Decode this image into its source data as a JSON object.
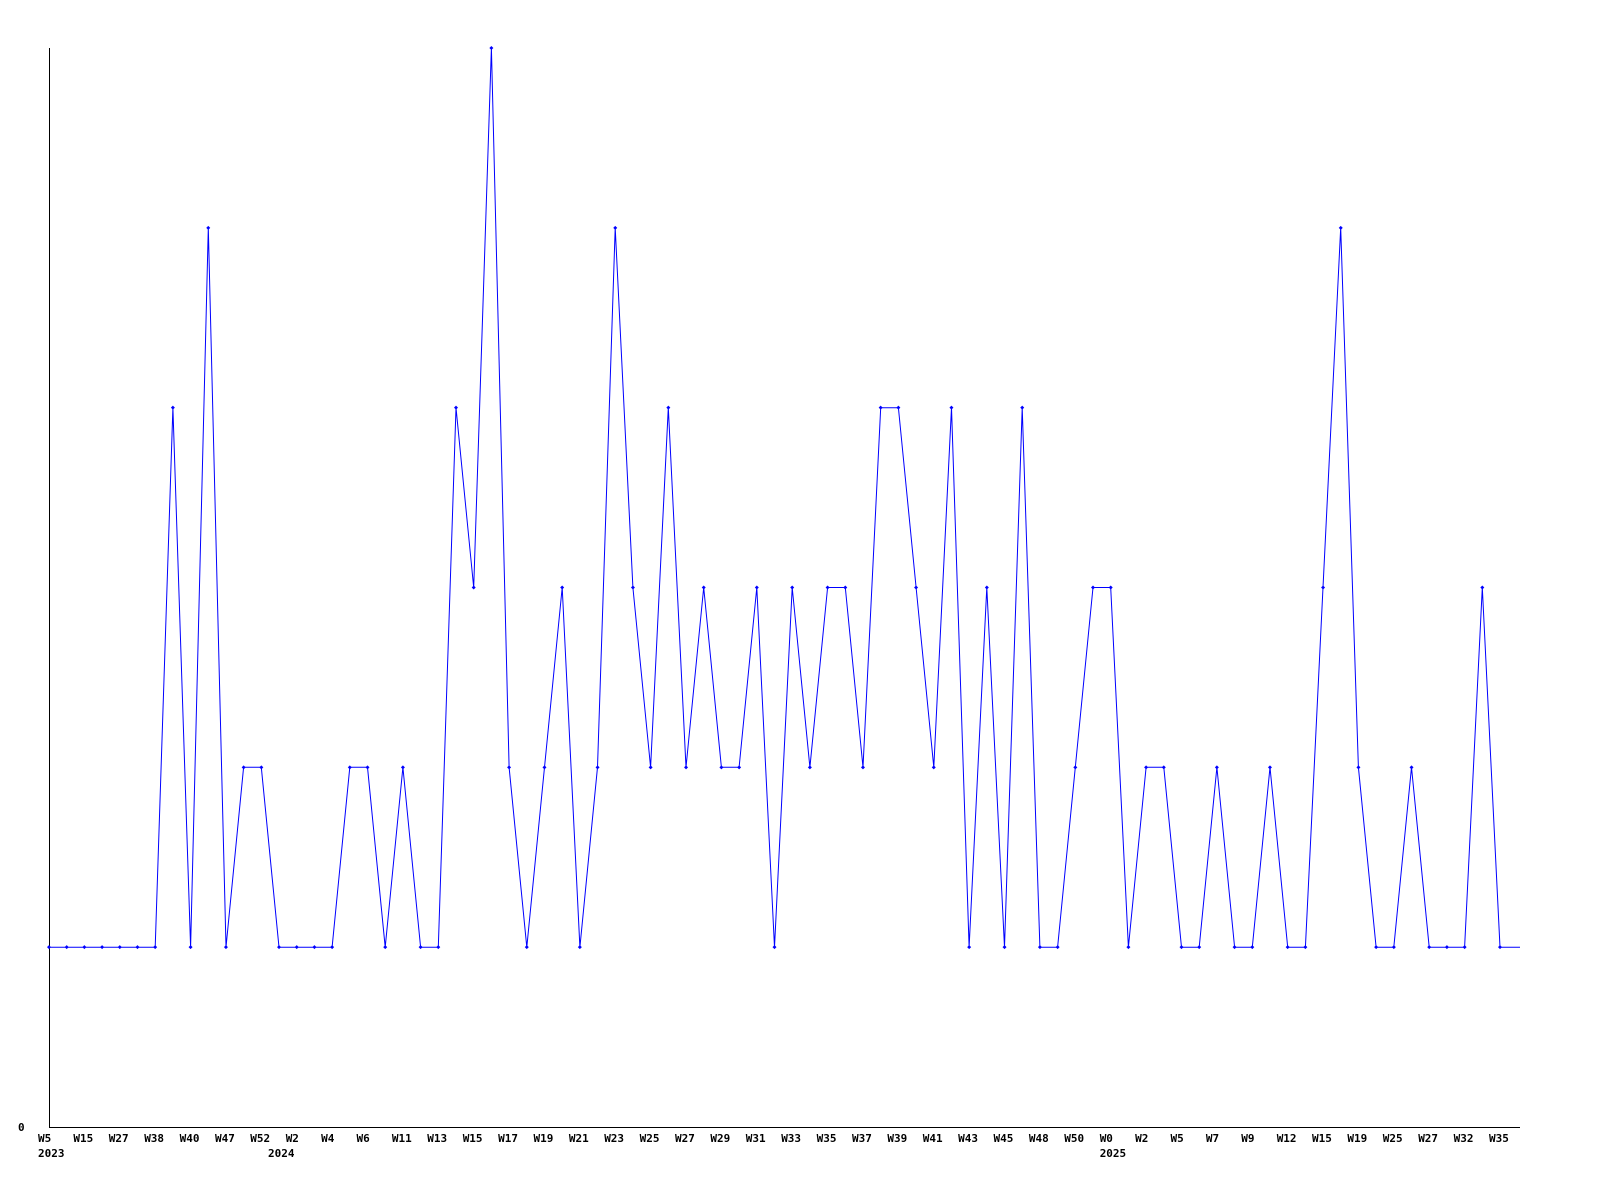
{
  "chart_data": {
    "type": "line",
    "title": "",
    "xlabel": "",
    "ylabel": "",
    "ylim": [
      0,
      6
    ],
    "y_tick_labels": [
      "0"
    ],
    "grid": false,
    "line_color": "#0000ff",
    "axis_color": "#000000",
    "x_tick_labels": [
      "W5",
      "W15",
      "W27",
      "W38",
      "W40",
      "W47",
      "W52",
      "W2",
      "W4",
      "W6",
      "W11",
      "W13",
      "W15",
      "W17",
      "W19",
      "W21",
      "W23",
      "W25",
      "W27",
      "W29",
      "W31",
      "W33",
      "W35",
      "W37",
      "W39",
      "W41",
      "W43",
      "W45",
      "W48",
      "W50",
      "W0",
      "W2",
      "W5",
      "W7",
      "W9",
      "W12",
      "W15",
      "W19",
      "W25",
      "W27",
      "W32",
      "W35"
    ],
    "year_labels": [
      {
        "label": "2023",
        "at_point": 0
      },
      {
        "label": "2024",
        "at_point": 13
      },
      {
        "label": "2025",
        "at_point": 60
      }
    ],
    "values": [
      1,
      1,
      1,
      1,
      1,
      1,
      1,
      4,
      1,
      5,
      1,
      2,
      2,
      1,
      1,
      1,
      1,
      2,
      2,
      1,
      2,
      1,
      1,
      4,
      3,
      6,
      2,
      1,
      2,
      3,
      1,
      2,
      5,
      3,
      2,
      4,
      2,
      3,
      2,
      2,
      3,
      1,
      3,
      2,
      3,
      3,
      2,
      4,
      4,
      3,
      2,
      4,
      1,
      3,
      1,
      4,
      1,
      1,
      2,
      3,
      3,
      1,
      2,
      2,
      1,
      1,
      2,
      1,
      1,
      2,
      1,
      1,
      3,
      5,
      2,
      1,
      1,
      2,
      1,
      1,
      1,
      3,
      1
    ]
  }
}
